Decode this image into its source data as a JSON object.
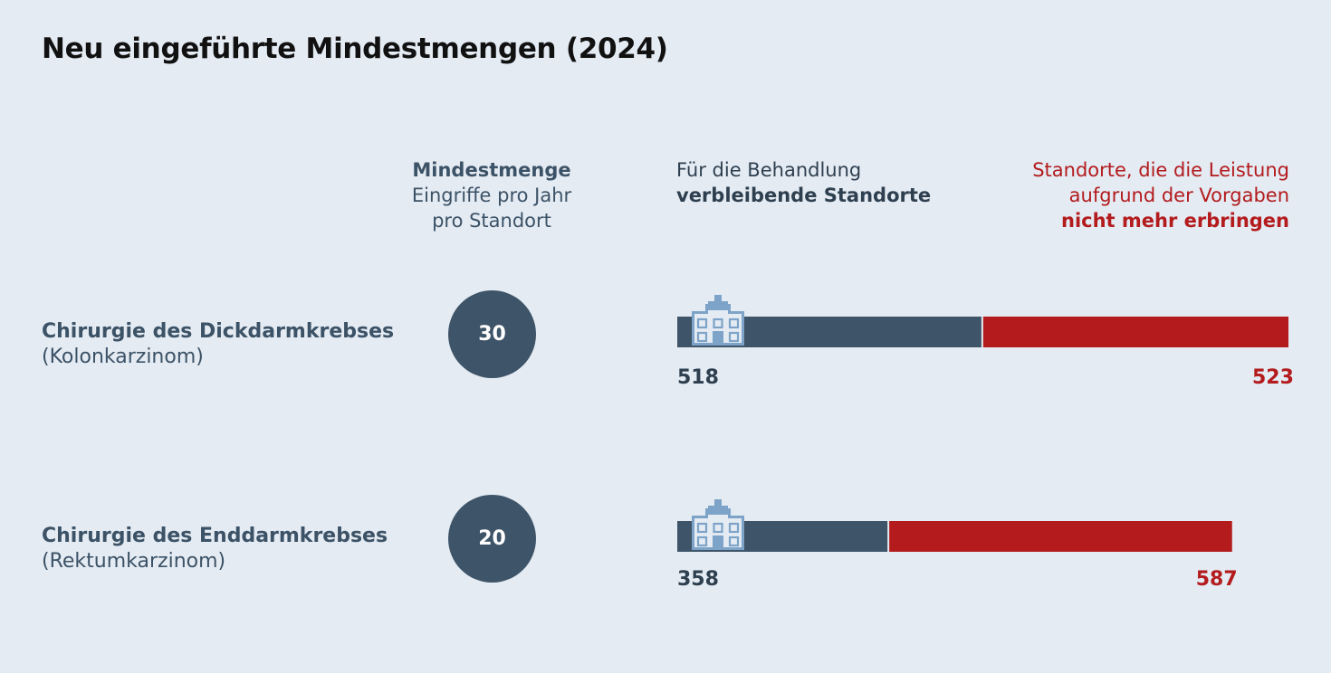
{
  "title": "Neu eingeführte Mindestmengen (2024)",
  "headers": {
    "min": {
      "line1": "Mindestmenge",
      "line2": "Eingriffe pro Jahr",
      "line3": "pro Standort"
    },
    "remain": {
      "line1": "Für die Behandlung",
      "line2": "verbleibende Standorte"
    },
    "lost": {
      "line1": "Standorte, die die Leistung",
      "line2": "aufgrund der Vorgaben",
      "line3": "nicht mehr erbringen"
    }
  },
  "colors": {
    "background": "#e4ebf3",
    "remain": "#3e5468",
    "lost": "#b31b1d",
    "icon": "#7da3c8"
  },
  "icons": {
    "bar_start": "hospital-icon"
  },
  "chart_data": {
    "type": "bar",
    "orientation": "horizontal-stacked",
    "categories": [
      {
        "name": "Chirurgie des Dickdarmkrebses",
        "sub": "(Kolonkarzinom)",
        "mindestmenge": "30"
      },
      {
        "name": "Chirurgie des Enddarmkrebses",
        "sub": "(Rektumkarzinom)",
        "mindestmenge": "20"
      }
    ],
    "series": [
      {
        "name": "Für die Behandlung verbleibende Standorte",
        "values": [
          518,
          358
        ]
      },
      {
        "name": "Standorte, die die Leistung aufgrund der Vorgaben nicht mehr erbringen",
        "values": [
          523,
          587
        ]
      }
    ],
    "legend": "top"
  }
}
